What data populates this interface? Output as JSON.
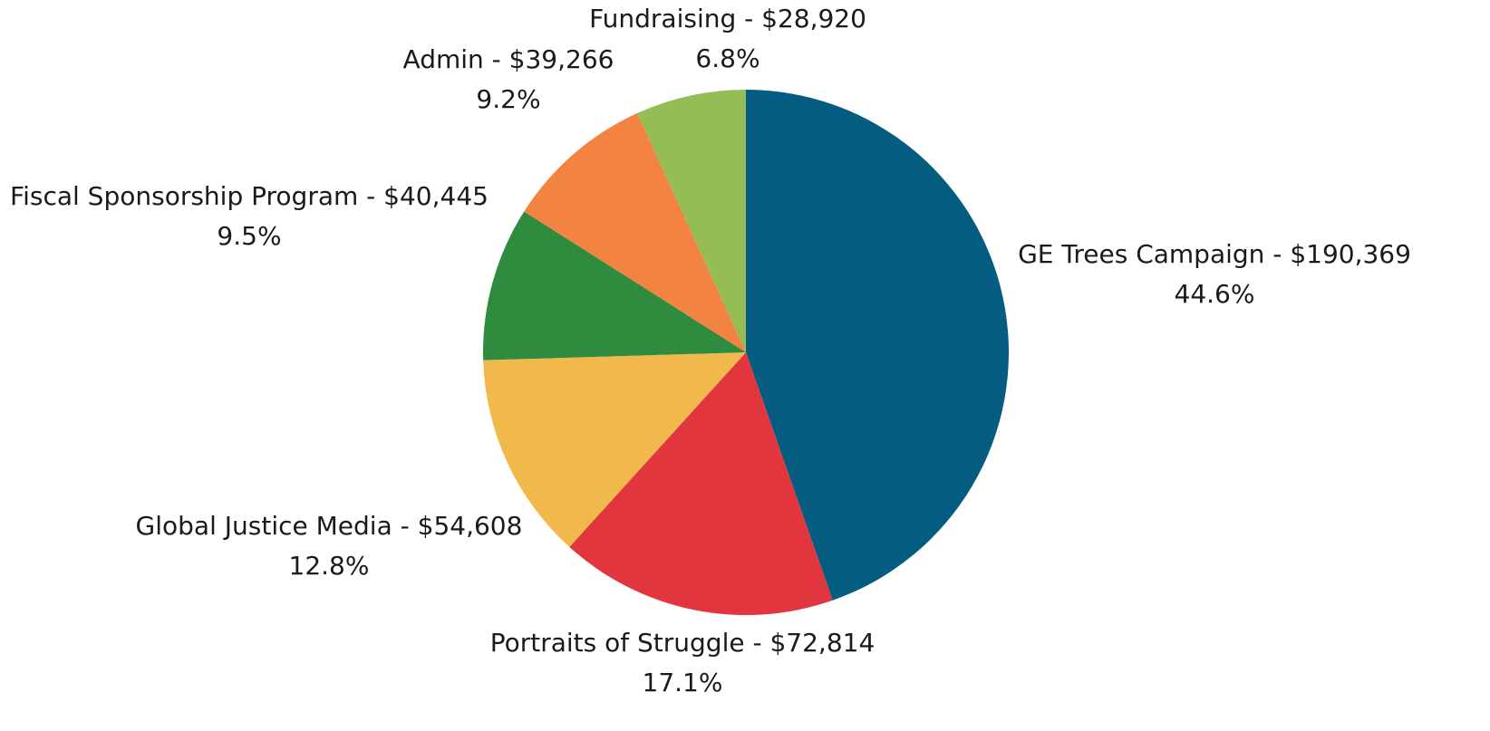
{
  "chart_data": {
    "type": "pie",
    "labels": [
      "GE Trees Campaign - $190,369",
      "Portraits of Struggle - $72,814",
      "Global Justice Media - $54,608",
      "Fiscal Sponsorship Program - $40,445",
      "Admin - $39,266",
      "Fundraising - $28,920"
    ],
    "values": [
      190369,
      72814,
      54608,
      40445,
      39266,
      28920
    ],
    "percent_labels": [
      "44.6%",
      "17.1%",
      "12.8%",
      "9.5%",
      "9.2%",
      "6.8%"
    ],
    "colors": [
      "#045d80",
      "#e2363f",
      "#f1b84b",
      "#2f8c3e",
      "#f38341",
      "#96bd55"
    ]
  }
}
